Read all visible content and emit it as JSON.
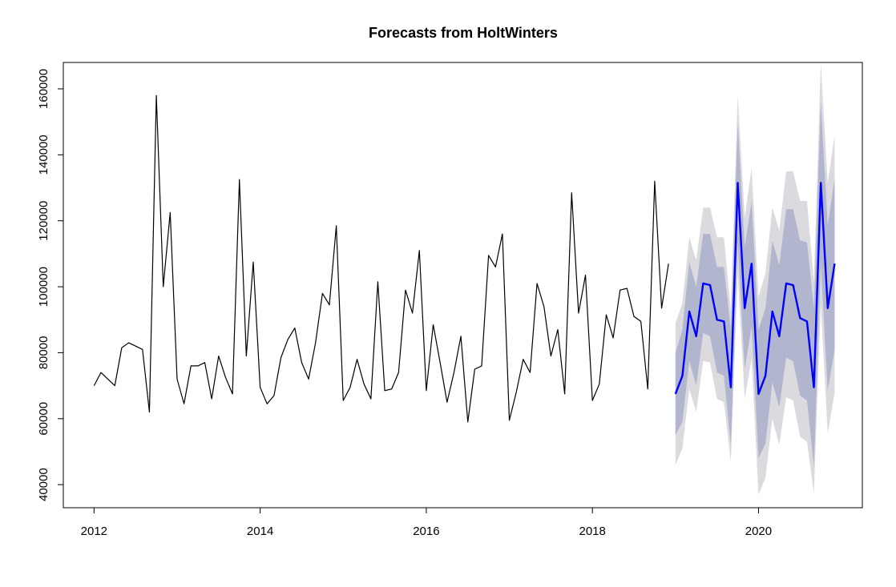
{
  "chart_data": {
    "type": "line",
    "title": "Forecasts from HoltWinters",
    "xlabel": "",
    "ylabel": "",
    "xlim": [
      2011.63,
      2021.25
    ],
    "ylim": [
      33000,
      168000
    ],
    "x_ticks": [
      2012,
      2014,
      2016,
      2018,
      2020
    ],
    "x_tick_labels": [
      "2012",
      "2014",
      "2016",
      "2018",
      "2020"
    ],
    "y_ticks": [
      40000,
      60000,
      80000,
      100000,
      120000,
      140000,
      160000
    ],
    "y_tick_labels": [
      "40000",
      "60000",
      "80000",
      "100000",
      "120000",
      "140000",
      "160000"
    ],
    "grid": false,
    "observed": {
      "start": 2012.0,
      "frequency": 12,
      "color": "#000000",
      "values": [
        70000,
        74000,
        72000,
        70000,
        81500,
        83000,
        82000,
        81000,
        62000,
        158000,
        100000,
        122500,
        72000,
        64500,
        76000,
        76000,
        77000,
        66000,
        79000,
        72500,
        67500,
        132500,
        79000,
        107500,
        69500,
        64500,
        67000,
        78500,
        84000,
        87500,
        77000,
        72000,
        83000,
        98000,
        94500,
        118500,
        65500,
        69500,
        78000,
        70500,
        66000,
        101500,
        68500,
        69000,
        74000,
        99000,
        92000,
        111000,
        68500,
        88500,
        77000,
        65000,
        74000,
        85000,
        59000,
        75000,
        76000,
        109500,
        106000,
        116000,
        59500,
        68000,
        78000,
        74000,
        101000,
        94000,
        79000,
        87000,
        67500,
        128500,
        92000,
        103500,
        65500,
        70500,
        91500,
        84500,
        99000,
        99500,
        91000,
        89500,
        69000,
        132000,
        93500,
        107000
      ]
    },
    "forecast": {
      "start": 2019.0,
      "frequency": 12,
      "color": "#0000FF",
      "mean": [
        67500,
        73000,
        92500,
        85000,
        101000,
        100500,
        90000,
        89500,
        69500,
        131500,
        93500,
        107000,
        67500,
        73000,
        92500,
        85000,
        101000,
        100500,
        90500,
        89500,
        69500,
        131500,
        93500,
        107000
      ],
      "lower80": [
        55000,
        59000,
        77500,
        70000,
        86000,
        85000,
        74000,
        73000,
        52000,
        113500,
        75000,
        88000,
        48000,
        52500,
        71000,
        63500,
        78500,
        77500,
        67000,
        65500,
        45500,
        107000,
        68500,
        81000
      ],
      "upper80": [
        80000,
        87000,
        107500,
        100000,
        116000,
        116000,
        106000,
        106000,
        87000,
        149500,
        112000,
        126000,
        87000,
        93500,
        114000,
        106500,
        123500,
        123500,
        114000,
        113500,
        93500,
        156000,
        118500,
        133000
      ],
      "lower95": [
        46000,
        51000,
        69000,
        62000,
        77500,
        77000,
        66000,
        65000,
        47000,
        104000,
        66000,
        78000,
        37000,
        42000,
        60000,
        52000,
        66500,
        65500,
        54500,
        53000,
        37500,
        94500,
        55500,
        68000
      ],
      "upper95": [
        89000,
        95000,
        115000,
        108000,
        124000,
        124000,
        115000,
        115000,
        93000,
        158000,
        121000,
        136000,
        97000,
        104000,
        124000,
        117000,
        135000,
        135000,
        126000,
        126000,
        101500,
        168000,
        131500,
        146000
      ],
      "band80_color": "#B1B5CE",
      "band95_color": "#DBDBDF"
    }
  }
}
